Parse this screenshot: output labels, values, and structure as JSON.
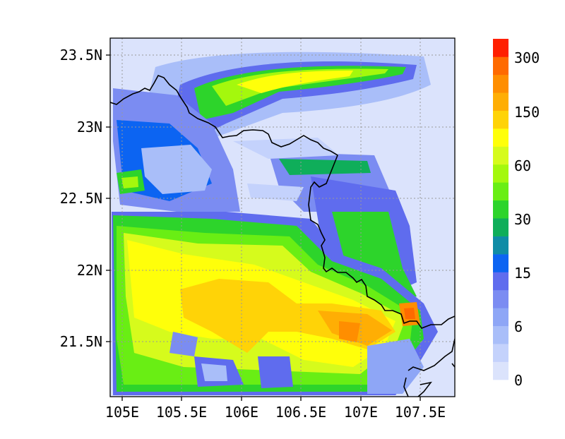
{
  "map": {
    "x_ticks": [
      "105E",
      "105.5E",
      "106E",
      "106.5E",
      "107E",
      "107.5E"
    ],
    "y_ticks": [
      "23.5N",
      "23N",
      "22.5N",
      "22N",
      "21.5N"
    ]
  },
  "colorbar": {
    "labels": [
      "0",
      "6",
      "15",
      "30",
      "60",
      "150",
      "300"
    ],
    "colors": [
      "#dbe3fc",
      "#c4d2fc",
      "#a9bef9",
      "#8ea6f6",
      "#7b8cf2",
      "#5f6cee",
      "#0c64f2",
      "#0f8ca6",
      "#0fae5a",
      "#2dd42b",
      "#69ee14",
      "#a4f80d",
      "#d6fb1c",
      "#ffff0a",
      "#ffd307",
      "#ffae04",
      "#ff8e00",
      "#ff6a00",
      "#ff1f00"
    ],
    "bg": "#dbe3fc"
  }
}
